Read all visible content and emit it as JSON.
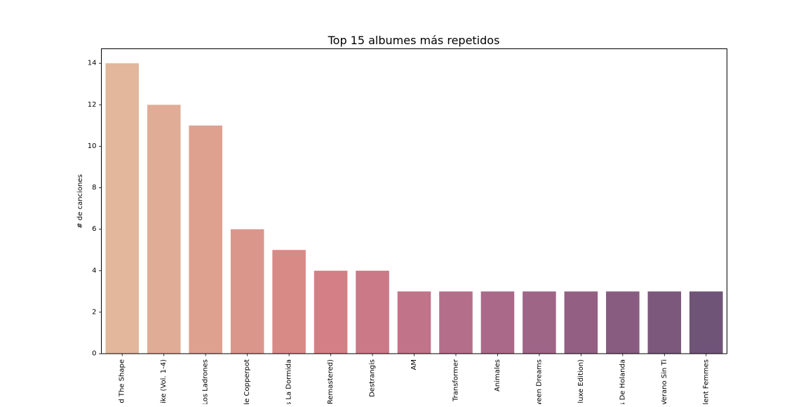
{
  "chart_data": {
    "type": "bar",
    "title": "Top 15 albumes más repetidos",
    "xlabel": "",
    "ylabel": "# de canciones",
    "categories": [
      "d The Shape",
      "ike (Vol. 1-4)",
      "Los Ladrones",
      "de Copperpot",
      "s La Dormida",
      "Remastered)",
      "Destrangis",
      "AM",
      "Transformer",
      "Animales",
      "ween Dreams",
      "luxe Edition)",
      "s De Holanda",
      "Verano Sin Ti",
      "lent Femmes"
    ],
    "values": [
      14,
      12,
      11,
      6,
      5,
      4,
      4,
      3,
      3,
      3,
      3,
      3,
      3,
      3,
      3
    ],
    "colors": [
      "#e2b79c",
      "#e0ac96",
      "#dea190",
      "#db968b",
      "#d88a87",
      "#d47f85",
      "#cb7987",
      "#c07389",
      "#b56e8a",
      "#aa6989",
      "#9f6587",
      "#936084",
      "#885c80",
      "#7c587c",
      "#705478"
    ],
    "ylim": [
      0,
      14.7
    ],
    "yticks": [
      0,
      2,
      4,
      6,
      8,
      10,
      12,
      14
    ],
    "grid": false,
    "legend": "none"
  }
}
